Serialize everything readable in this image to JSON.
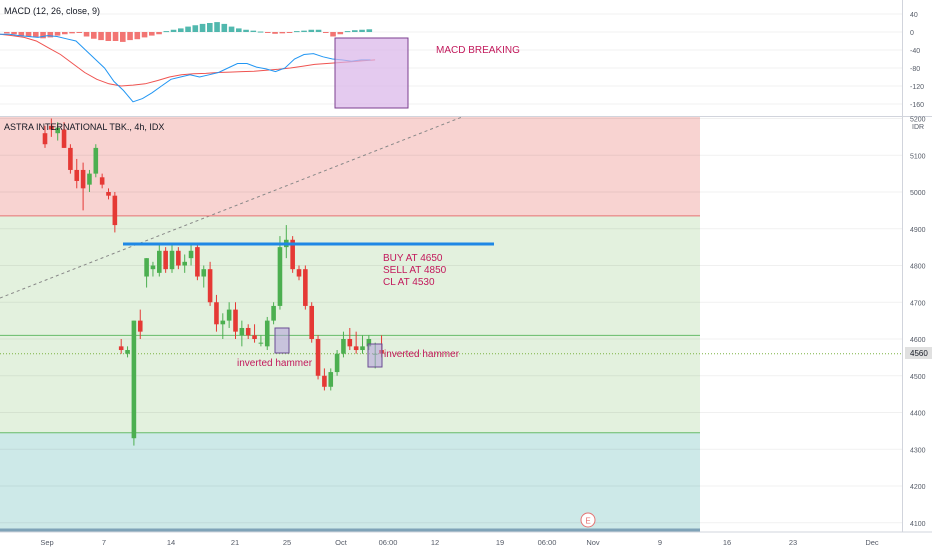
{
  "macd": {
    "label": "MACD (12, 26, close, 9)",
    "axis_ticks": [
      40,
      0,
      -40,
      -80,
      -120,
      -160
    ],
    "annotation": "MACD BREAKING",
    "hist_up_color": "#26a69a",
    "hist_down_color": "#ef5350",
    "macd_line_color": "#2196f3",
    "signal_line_color": "#ef5350"
  },
  "main": {
    "label": "ASTRA INTERNATIONAL TBK., 4h, IDX",
    "currency": "IDR",
    "axis_ticks": [
      5200,
      5100,
      5000,
      4900,
      4800,
      4700,
      4600,
      4500,
      4400,
      4300,
      4200,
      4100
    ],
    "last_price": "4560",
    "notes": [
      "BUY AT 4650",
      "SELL AT 4850",
      "CL AT 4530"
    ],
    "pattern_labels": [
      "inverted hammer",
      "inverted hammer"
    ],
    "event_marker": "E",
    "zones": {
      "resistance_color": "#f8d3d1",
      "range_color": "#e3f1de",
      "support_color": "#cde9e8"
    }
  },
  "time_axis": [
    "Sep",
    "7",
    "14",
    "21",
    "25",
    "Oct",
    "06:00",
    "12",
    "19",
    "06:00",
    "Nov",
    "9",
    "16",
    "23",
    "Dec"
  ],
  "chart_data": {
    "type": "candlestick",
    "title": "ASTRA INTERNATIONAL TBK., 4h, IDX",
    "ylabel": "IDR",
    "ylim": [
      4080,
      5210
    ],
    "levels": [
      4935,
      4855,
      4610,
      4345,
      4560
    ],
    "candles": [
      {
        "o": 5160,
        "h": 5180,
        "l": 5120,
        "c": 5130
      },
      {
        "o": 5180,
        "h": 5200,
        "l": 5150,
        "c": 5170
      },
      {
        "o": 5160,
        "h": 5190,
        "l": 5140,
        "c": 5175
      },
      {
        "o": 5170,
        "h": 5190,
        "l": 5120,
        "c": 5120
      },
      {
        "o": 5120,
        "h": 5130,
        "l": 5050,
        "c": 5060
      },
      {
        "o": 5060,
        "h": 5090,
        "l": 5010,
        "c": 5030
      },
      {
        "o": 5060,
        "h": 5080,
        "l": 4950,
        "c": 5010
      },
      {
        "o": 5020,
        "h": 5060,
        "l": 5000,
        "c": 5050
      },
      {
        "o": 5050,
        "h": 5130,
        "l": 5040,
        "c": 5120
      },
      {
        "o": 5040,
        "h": 5050,
        "l": 5010,
        "c": 5020
      },
      {
        "o": 5000,
        "h": 5010,
        "l": 4980,
        "c": 4990
      },
      {
        "o": 4990,
        "h": 5000,
        "l": 4890,
        "c": 4910
      },
      {
        "o": 4580,
        "h": 4600,
        "l": 4560,
        "c": 4570
      },
      {
        "o": 4560,
        "h": 4580,
        "l": 4550,
        "c": 4570
      },
      {
        "o": 4330,
        "h": 4650,
        "l": 4310,
        "c": 4650
      },
      {
        "o": 4650,
        "h": 4680,
        "l": 4600,
        "c": 4620
      },
      {
        "o": 4770,
        "h": 4820,
        "l": 4740,
        "c": 4820
      },
      {
        "o": 4790,
        "h": 4810,
        "l": 4770,
        "c": 4800
      },
      {
        "o": 4780,
        "h": 4860,
        "l": 4770,
        "c": 4840
      },
      {
        "o": 4840,
        "h": 4850,
        "l": 4780,
        "c": 4790
      },
      {
        "o": 4790,
        "h": 4860,
        "l": 4780,
        "c": 4840
      },
      {
        "o": 4840,
        "h": 4850,
        "l": 4790,
        "c": 4800
      },
      {
        "o": 4800,
        "h": 4830,
        "l": 4780,
        "c": 4810
      },
      {
        "o": 4820,
        "h": 4860,
        "l": 4800,
        "c": 4840
      },
      {
        "o": 4850,
        "h": 4860,
        "l": 4760,
        "c": 4770
      },
      {
        "o": 4770,
        "h": 4800,
        "l": 4740,
        "c": 4790
      },
      {
        "o": 4790,
        "h": 4810,
        "l": 4690,
        "c": 4700
      },
      {
        "o": 4700,
        "h": 4720,
        "l": 4620,
        "c": 4640
      },
      {
        "o": 4640,
        "h": 4670,
        "l": 4600,
        "c": 4650
      },
      {
        "o": 4650,
        "h": 4700,
        "l": 4630,
        "c": 4680
      },
      {
        "o": 4680,
        "h": 4700,
        "l": 4600,
        "c": 4620
      },
      {
        "o": 4610,
        "h": 4650,
        "l": 4580,
        "c": 4630
      },
      {
        "o": 4630,
        "h": 4640,
        "l": 4600,
        "c": 4610
      },
      {
        "o": 4610,
        "h": 4640,
        "l": 4590,
        "c": 4600
      },
      {
        "o": 4590,
        "h": 4610,
        "l": 4580,
        "c": 4590
      },
      {
        "o": 4580,
        "h": 4660,
        "l": 4570,
        "c": 4650
      },
      {
        "o": 4650,
        "h": 4700,
        "l": 4640,
        "c": 4690
      },
      {
        "o": 4690,
        "h": 4880,
        "l": 4680,
        "c": 4850
      },
      {
        "o": 4850,
        "h": 4910,
        "l": 4820,
        "c": 4870
      },
      {
        "o": 4870,
        "h": 4880,
        "l": 4780,
        "c": 4790
      },
      {
        "o": 4790,
        "h": 4800,
        "l": 4760,
        "c": 4770
      },
      {
        "o": 4790,
        "h": 4800,
        "l": 4680,
        "c": 4690
      },
      {
        "o": 4690,
        "h": 4700,
        "l": 4590,
        "c": 4600
      },
      {
        "o": 4600,
        "h": 4610,
        "l": 4490,
        "c": 4500
      },
      {
        "o": 4500,
        "h": 4520,
        "l": 4460,
        "c": 4470
      },
      {
        "o": 4470,
        "h": 4520,
        "l": 4460,
        "c": 4510
      },
      {
        "o": 4510,
        "h": 4570,
        "l": 4500,
        "c": 4560
      },
      {
        "o": 4560,
        "h": 4620,
        "l": 4550,
        "c": 4600
      },
      {
        "o": 4600,
        "h": 4630,
        "l": 4570,
        "c": 4580
      },
      {
        "o": 4580,
        "h": 4620,
        "l": 4560,
        "c": 4570
      },
      {
        "o": 4570,
        "h": 4610,
        "l": 4560,
        "c": 4580
      },
      {
        "o": 4580,
        "h": 4610,
        "l": 4570,
        "c": 4600
      },
      {
        "o": 4560,
        "h": 4590,
        "l": 4520,
        "c": 4560
      },
      {
        "o": 4570,
        "h": 4610,
        "l": 4550,
        "c": 4560
      }
    ],
    "macd_histogram": [
      -3,
      -5,
      -8,
      -10,
      -12,
      -14,
      -12,
      -8,
      -5,
      -3,
      -2,
      -10,
      -15,
      -18,
      -20,
      -20,
      -22,
      -18,
      -16,
      -12,
      -8,
      -5,
      2,
      5,
      8,
      12,
      15,
      18,
      20,
      22,
      18,
      12,
      8,
      5,
      3,
      1,
      -2,
      -4,
      -3,
      -1,
      2,
      3,
      5,
      5,
      -2,
      -10,
      -5,
      2,
      4,
      5,
      6
    ],
    "macd_line": [
      -5,
      -5,
      -8,
      -10,
      -12,
      -8,
      -10,
      -15,
      -20,
      -40,
      -60,
      -80,
      -110,
      -130,
      -155,
      -148,
      -135,
      -120,
      -105,
      -100,
      -95,
      -100,
      -95,
      -90,
      -80,
      -70,
      -70,
      -78,
      -82,
      -88,
      -80,
      -60,
      -50,
      -48,
      -55,
      -60,
      -62,
      -65,
      -62,
      -62
    ],
    "signal_line": [
      -5,
      -8,
      -12,
      -20,
      -35,
      -50,
      -70,
      -90,
      -105,
      -115,
      -120,
      -118,
      -115,
      -108,
      -100,
      -95,
      -93,
      -92,
      -90,
      -89,
      -88,
      -87,
      -85,
      -83,
      -80,
      -76,
      -72,
      -70,
      -68,
      -66,
      -64,
      -62
    ]
  }
}
